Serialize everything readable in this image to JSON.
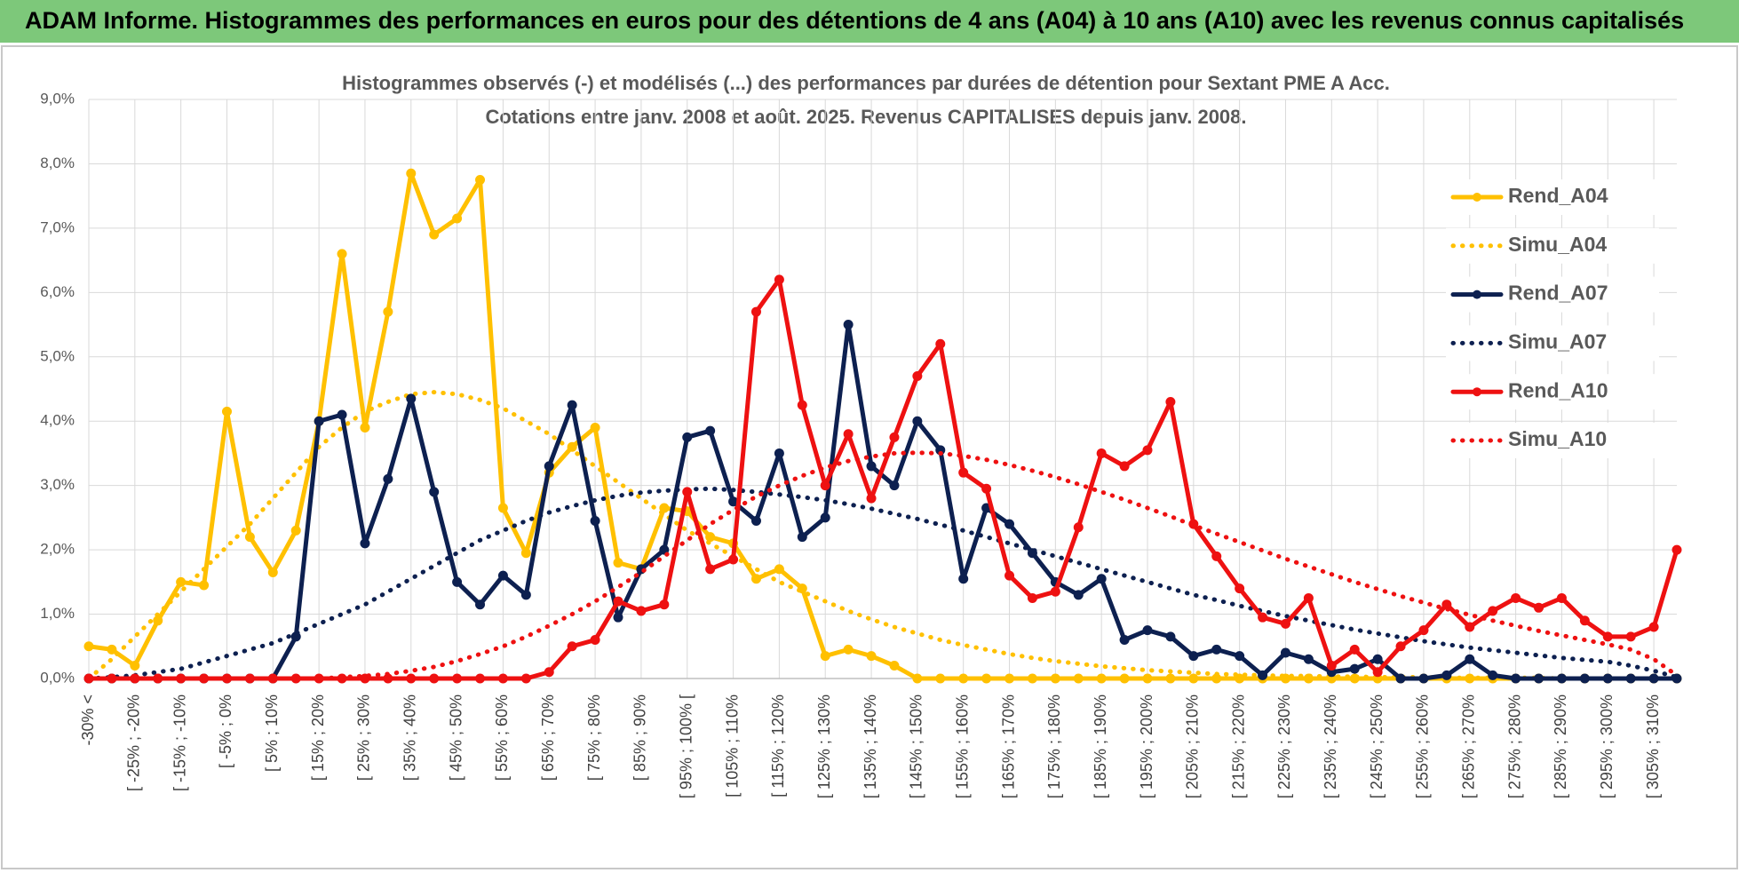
{
  "banner": {
    "title": "ADAM Informe. Histogrammes des performances en euros pour des détentions de 4 ans (A04) à 10 ans (A10) avec les revenus connus capitalisés"
  },
  "chart_data": {
    "type": "line",
    "title": "Histogrammes observés (-) et modélisés (...) des performances par durées de détention pour Sextant PME A Acc.",
    "subtitle": "Cotations entre janv. 2008 et août. 2025. Revenus CAPITALISES depuis janv. 2008.",
    "categories": [
      "-30% <",
      null,
      "[ -25% ; -20%",
      null,
      "[ -15% ; -10%",
      null,
      "[ -5% ; 0%",
      null,
      "[ 5% ; 10%",
      null,
      "[ 15% ; 20%",
      null,
      "[ 25% ; 30%",
      null,
      "[ 35% ; 40%",
      null,
      "[ 45% ; 50%",
      null,
      "[ 55% ; 60%",
      null,
      "[ 65% ; 70%",
      null,
      "[ 75% ; 80%",
      null,
      "[ 85% ; 90%",
      null,
      "[ 95% ; 100% [",
      null,
      "[ 105% ; 110%",
      null,
      "[ 115% ; 120%",
      null,
      "[ 125% ; 130%",
      null,
      "[ 135% ; 140%",
      null,
      "[ 145% ; 150%",
      null,
      "[ 155% ; 160%",
      null,
      "[ 165% ; 170%",
      null,
      "[ 175% ; 180%",
      null,
      "[ 185% ; 190%",
      null,
      "[ 195% ; 200%",
      null,
      "[ 205% ; 210%",
      null,
      "[ 215% ; 220%",
      null,
      "[ 225% ; 230%",
      null,
      "[ 235% ; 240%",
      null,
      "[ 245% ; 250%",
      null,
      "[ 255% ; 260%",
      null,
      "[ 265% ; 270%",
      null,
      "[ 275% ; 280%",
      null,
      "[ 285% ; 290%",
      null,
      "[ 295% ; 300%",
      null,
      "[ 305% ; 310%",
      null
    ],
    "series": [
      {
        "name": "Rend_A04",
        "color": "#ffc000",
        "style": "solid",
        "values": [
          0.5,
          0.45,
          0.2,
          0.9,
          1.5,
          1.45,
          4.15,
          2.2,
          1.65,
          2.3,
          4.0,
          6.6,
          3.9,
          5.7,
          7.85,
          6.9,
          7.15,
          7.75,
          2.65,
          1.95,
          3.2,
          3.6,
          3.9,
          1.8,
          1.7,
          2.65,
          2.6,
          2.2,
          2.1,
          1.55,
          1.7,
          1.4,
          0.35,
          0.45,
          0.35,
          0.2,
          0,
          0,
          0,
          0,
          0,
          0,
          0,
          0,
          0,
          0,
          0,
          0,
          0,
          0,
          0,
          0,
          0,
          0,
          0,
          0,
          0,
          0,
          0,
          0,
          0,
          0,
          0,
          0,
          0,
          0,
          0,
          0,
          0,
          0
        ]
      },
      {
        "name": "Simu_A04",
        "color": "#ffc000",
        "style": "dotted",
        "values": [
          0,
          0.3,
          0.65,
          1.0,
          1.35,
          1.7,
          2.05,
          2.4,
          2.8,
          3.2,
          3.6,
          3.9,
          4.15,
          4.3,
          4.42,
          4.45,
          4.42,
          4.33,
          4.2,
          4.0,
          3.8,
          3.55,
          3.3,
          3.05,
          2.8,
          2.55,
          2.3,
          2.1,
          1.9,
          1.7,
          1.5,
          1.35,
          1.2,
          1.05,
          0.92,
          0.8,
          0.7,
          0.6,
          0.52,
          0.45,
          0.38,
          0.32,
          0.27,
          0.23,
          0.19,
          0.16,
          0.13,
          0.11,
          0.09,
          0.07,
          0.06,
          0.05,
          0.04,
          0.04,
          0.03,
          0.03,
          0.02,
          0.02,
          0.02,
          0.01,
          0.01,
          0.01,
          0.01,
          0.01,
          0,
          0,
          0,
          0,
          0,
          0
        ]
      },
      {
        "name": "Rend_A07",
        "color": "#0d2050",
        "style": "solid",
        "values": [
          0,
          0,
          0,
          0,
          0,
          0,
          0,
          0,
          0,
          0.65,
          4.0,
          4.1,
          2.1,
          3.1,
          4.35,
          2.9,
          1.5,
          1.15,
          1.6,
          1.3,
          3.3,
          4.25,
          2.45,
          0.95,
          1.7,
          2.0,
          3.75,
          3.85,
          2.75,
          2.45,
          3.5,
          2.2,
          2.5,
          5.5,
          3.3,
          3.0,
          4.0,
          3.55,
          1.55,
          2.65,
          2.4,
          1.95,
          1.5,
          1.3,
          1.55,
          0.6,
          0.75,
          0.65,
          0.35,
          0.45,
          0.35,
          0.05,
          0.4,
          0.3,
          0.1,
          0.15,
          0.3,
          0,
          0,
          0.05,
          0.3,
          0.05,
          0,
          0,
          0,
          0,
          0,
          0,
          0,
          0
        ]
      },
      {
        "name": "Simu_A07",
        "color": "#0d2050",
        "style": "dotted",
        "values": [
          0,
          0.02,
          0.05,
          0.1,
          0.15,
          0.25,
          0.35,
          0.45,
          0.55,
          0.7,
          0.85,
          1.0,
          1.15,
          1.35,
          1.55,
          1.75,
          1.95,
          2.15,
          2.3,
          2.45,
          2.58,
          2.68,
          2.77,
          2.84,
          2.89,
          2.92,
          2.94,
          2.95,
          2.93,
          2.9,
          2.86,
          2.82,
          2.77,
          2.71,
          2.64,
          2.56,
          2.48,
          2.39,
          2.3,
          2.2,
          2.1,
          2.0,
          1.9,
          1.8,
          1.7,
          1.6,
          1.5,
          1.4,
          1.3,
          1.22,
          1.13,
          1.05,
          0.97,
          0.9,
          0.83,
          0.76,
          0.7,
          0.64,
          0.58,
          0.53,
          0.48,
          0.44,
          0.4,
          0.36,
          0.32,
          0.29,
          0.26,
          0.2,
          0.12,
          0.02
        ]
      },
      {
        "name": "Rend_A10",
        "color": "#ee1111",
        "style": "solid",
        "values": [
          0,
          0,
          0,
          0,
          0,
          0,
          0,
          0,
          0,
          0,
          0,
          0,
          0,
          0,
          0,
          0,
          0,
          0,
          0,
          0,
          0.1,
          0.5,
          0.6,
          1.2,
          1.05,
          1.15,
          2.9,
          1.7,
          1.85,
          5.7,
          6.2,
          4.25,
          3.0,
          3.8,
          2.8,
          3.75,
          4.7,
          5.2,
          3.2,
          2.95,
          1.6,
          1.25,
          1.35,
          2.35,
          3.5,
          3.3,
          3.55,
          4.3,
          2.4,
          1.9,
          1.4,
          0.95,
          0.85,
          1.25,
          0.2,
          0.45,
          0.1,
          0.5,
          0.75,
          1.15,
          0.8,
          1.05,
          1.25,
          1.1,
          1.25,
          0.9,
          0.65,
          0.65,
          0.8,
          2.0
        ]
      },
      {
        "name": "Simu_A10",
        "color": "#ee1111",
        "style": "dotted",
        "values": [
          0,
          0,
          0,
          0,
          0,
          0,
          0,
          0,
          0,
          0,
          0,
          0.02,
          0.04,
          0.07,
          0.12,
          0.18,
          0.27,
          0.38,
          0.5,
          0.65,
          0.82,
          1.0,
          1.2,
          1.42,
          1.65,
          1.9,
          2.15,
          2.4,
          2.62,
          2.83,
          3.0,
          3.15,
          3.28,
          3.38,
          3.45,
          3.5,
          3.51,
          3.5,
          3.46,
          3.4,
          3.32,
          3.23,
          3.13,
          3.02,
          2.9,
          2.78,
          2.65,
          2.52,
          2.38,
          2.25,
          2.12,
          1.99,
          1.86,
          1.74,
          1.62,
          1.5,
          1.39,
          1.28,
          1.18,
          1.08,
          0.99,
          0.9,
          0.82,
          0.74,
          0.67,
          0.6,
          0.53,
          0.45,
          0.3,
          0.05
        ]
      }
    ],
    "ylim": [
      0,
      9
    ],
    "yticks": [
      {
        "value": 0,
        "label": "0,0%"
      },
      {
        "value": 1,
        "label": "1,0%"
      },
      {
        "value": 2,
        "label": "2,0%"
      },
      {
        "value": 3,
        "label": "3,0%"
      },
      {
        "value": 4,
        "label": "4,0%"
      },
      {
        "value": 5,
        "label": "5,0%"
      },
      {
        "value": 6,
        "label": "6,0%"
      },
      {
        "value": 7,
        "label": "7,0%"
      },
      {
        "value": 8,
        "label": "8,0%"
      },
      {
        "value": 9,
        "label": "9,0%"
      }
    ],
    "grid": true,
    "legend": "right"
  }
}
